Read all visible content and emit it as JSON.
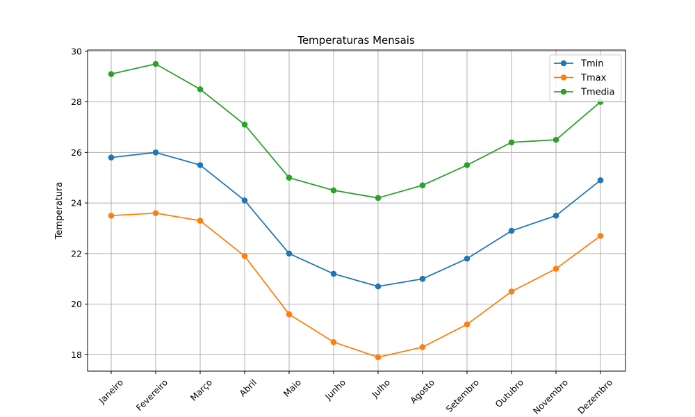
{
  "chart_data": {
    "type": "line",
    "title": "Temperaturas Mensais",
    "xlabel": "",
    "ylabel": "Temperatura",
    "categories": [
      "Janeiro",
      "Fevereiro",
      "Março",
      "Abril",
      "Maio",
      "Junho",
      "Julho",
      "Agosto",
      "Setembro",
      "Outubro",
      "Novembro",
      "Dezembro"
    ],
    "ylim": [
      17.35,
      30.05
    ],
    "yticks": [
      18,
      20,
      22,
      24,
      26,
      28,
      30
    ],
    "grid": true,
    "legend_position": "top-right",
    "series": [
      {
        "name": "Tmin",
        "color": "#1f77b4",
        "values": [
          25.8,
          26.0,
          25.5,
          24.1,
          22.0,
          21.2,
          20.7,
          21.0,
          21.8,
          22.9,
          23.5,
          24.9
        ]
      },
      {
        "name": "Tmax",
        "color": "#ff7f0e",
        "values": [
          23.5,
          23.6,
          23.3,
          21.9,
          19.6,
          18.5,
          17.9,
          18.3,
          19.2,
          20.5,
          21.4,
          22.7
        ]
      },
      {
        "name": "Tmedia",
        "color": "#2ca02c",
        "values": [
          29.1,
          29.5,
          28.5,
          27.1,
          25.0,
          24.5,
          24.2,
          24.7,
          25.5,
          26.4,
          26.5,
          28.0
        ]
      }
    ]
  }
}
